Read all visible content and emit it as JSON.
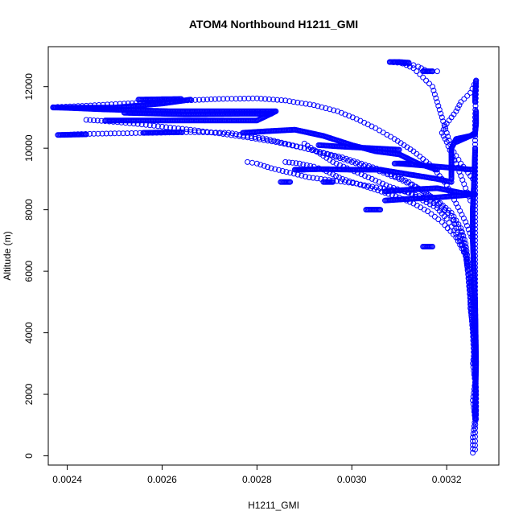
{
  "chart_data": {
    "type": "scatter",
    "title": "ATOM4 Northbound H1211_GMI",
    "xlabel": "H1211_GMI",
    "ylabel": "Altitude (m)",
    "xlim": [
      0.00236,
      0.00331
    ],
    "ylim": [
      -300,
      13300
    ],
    "x_ticks": [
      0.0024,
      0.0026,
      0.0028,
      0.003,
      0.0032
    ],
    "x_tick_labels": [
      "0.0024",
      "0.0026",
      "0.0028",
      "0.0030",
      "0.0032"
    ],
    "y_ticks": [
      0,
      2000,
      4000,
      6000,
      8000,
      10000,
      12000
    ],
    "y_tick_labels": [
      "0",
      "2000",
      "4000",
      "6000",
      "8000",
      "10000",
      "12000"
    ],
    "marker": "open-circle",
    "color": "#0000ff",
    "grid": false,
    "series": [
      {
        "points": [
          [
            0.003255,
            100
          ],
          [
            0.003255,
            600
          ],
          [
            0.00326,
            1200
          ],
          [
            0.003255,
            1800
          ],
          [
            0.00326,
            2400
          ],
          [
            0.003255,
            3000
          ],
          [
            0.00326,
            3600
          ],
          [
            0.003255,
            4200
          ],
          [
            0.00325,
            4800
          ],
          [
            0.00325,
            5400
          ],
          [
            0.003245,
            6000
          ],
          [
            0.00324,
            6500
          ],
          [
            0.00323,
            7000
          ],
          [
            0.00322,
            7400
          ],
          [
            0.00321,
            7800
          ],
          [
            0.00319,
            8100
          ],
          [
            0.00317,
            8400
          ],
          [
            0.00315,
            8600
          ],
          [
            0.00312,
            8900
          ],
          [
            0.00309,
            9100
          ],
          [
            0.00306,
            9300
          ],
          [
            0.00302,
            9500
          ],
          [
            0.00298,
            9700
          ],
          [
            0.00294,
            9850
          ],
          [
            0.0029,
            10000
          ],
          [
            0.00286,
            10150
          ],
          [
            0.00282,
            10300
          ],
          [
            0.00278,
            10400
          ],
          [
            0.00274,
            10500
          ],
          [
            0.00266,
            10520
          ],
          [
            0.00258,
            10500
          ],
          [
            0.0025,
            10480
          ],
          [
            0.00243,
            10460
          ],
          [
            0.0024,
            10440
          ]
        ]
      },
      {
        "points": [
          [
            0.00326,
            200
          ],
          [
            0.00326,
            900
          ],
          [
            0.003262,
            1500
          ],
          [
            0.003262,
            2100
          ],
          [
            0.00326,
            2700
          ],
          [
            0.00326,
            3300
          ],
          [
            0.00326,
            3900
          ],
          [
            0.003258,
            4500
          ],
          [
            0.003255,
            5100
          ],
          [
            0.00325,
            5700
          ],
          [
            0.003245,
            6300
          ],
          [
            0.00324,
            6900
          ],
          [
            0.00323,
            7400
          ],
          [
            0.00321,
            7900
          ],
          [
            0.00318,
            8300
          ],
          [
            0.00314,
            8700
          ],
          [
            0.0031,
            9000
          ],
          [
            0.00305,
            9300
          ],
          [
            0.003,
            9550
          ],
          [
            0.00295,
            9800
          ],
          [
            0.0029,
            10000
          ],
          [
            0.00284,
            10200
          ],
          [
            0.00278,
            10350
          ],
          [
            0.00272,
            10480
          ],
          [
            0.00266,
            10600
          ],
          [
            0.0026,
            10700
          ],
          [
            0.00254,
            10800
          ],
          [
            0.00248,
            10880
          ],
          [
            0.00244,
            10920
          ]
        ]
      },
      {
        "points": [
          [
            0.003255,
            7000
          ],
          [
            0.00324,
            7600
          ],
          [
            0.00322,
            8200
          ],
          [
            0.0032,
            8800
          ],
          [
            0.00317,
            9400
          ],
          [
            0.00313,
            9900
          ],
          [
            0.00309,
            10300
          ],
          [
            0.00305,
            10650
          ],
          [
            0.00301,
            10950
          ],
          [
            0.00297,
            11200
          ],
          [
            0.00292,
            11400
          ],
          [
            0.00286,
            11550
          ],
          [
            0.0028,
            11620
          ],
          [
            0.00272,
            11600
          ],
          [
            0.00262,
            11530
          ],
          [
            0.00252,
            11450
          ],
          [
            0.00244,
            11380
          ],
          [
            0.00238,
            11340
          ]
        ]
      },
      {
        "points": [
          [
            0.00326,
            4000
          ],
          [
            0.00326,
            5000
          ],
          [
            0.00326,
            6000
          ],
          [
            0.00326,
            7000
          ],
          [
            0.00326,
            8000
          ],
          [
            0.00326,
            9000
          ],
          [
            0.00326,
            10000
          ],
          [
            0.00326,
            11000
          ],
          [
            0.003262,
            12000
          ],
          [
            0.003262,
            12200
          ],
          [
            0.00325,
            11800
          ],
          [
            0.00323,
            11500
          ],
          [
            0.00322,
            11200
          ],
          [
            0.00321,
            11000
          ],
          [
            0.0032,
            10800
          ],
          [
            0.00319,
            10500
          ],
          [
            0.0032,
            10200
          ],
          [
            0.00321,
            9800
          ],
          [
            0.00322,
            9500
          ],
          [
            0.00323,
            9100
          ],
          [
            0.00324,
            8700
          ],
          [
            0.00325,
            8300
          ]
        ]
      },
      {
        "points": [
          [
            0.003255,
            9000
          ],
          [
            0.00323,
            9500
          ],
          [
            0.00321,
            10000
          ],
          [
            0.0032,
            10500
          ],
          [
            0.00319,
            11000
          ],
          [
            0.00318,
            11500
          ],
          [
            0.00317,
            12000
          ],
          [
            0.00315,
            12300
          ],
          [
            0.00313,
            12600
          ],
          [
            0.0031,
            12800
          ],
          [
            0.00308,
            12800
          ],
          [
            0.00312,
            12750
          ],
          [
            0.00314,
            12650
          ],
          [
            0.00316,
            12500
          ],
          [
            0.00318,
            12500
          ]
        ]
      },
      {
        "points": [
          [
            0.003262,
            1200
          ],
          [
            0.003262,
            2000
          ],
          [
            0.00326,
            2800
          ],
          [
            0.003258,
            3600
          ],
          [
            0.003255,
            4400
          ],
          [
            0.00325,
            5200
          ],
          [
            0.003245,
            6000
          ],
          [
            0.00324,
            6700
          ],
          [
            0.00323,
            7300
          ],
          [
            0.00321,
            7800
          ],
          [
            0.00318,
            8150
          ],
          [
            0.00315,
            8400
          ],
          [
            0.00311,
            8600
          ],
          [
            0.00306,
            8700
          ],
          [
            0.00301,
            8850
          ],
          [
            0.00296,
            8950
          ],
          [
            0.00291,
            9050
          ],
          [
            0.00287,
            9200
          ],
          [
            0.00283,
            9350
          ],
          [
            0.0028,
            9500
          ],
          [
            0.00278,
            9550
          ]
        ]
      },
      {
        "points": [
          [
            0.003258,
            3000
          ],
          [
            0.003255,
            4000
          ],
          [
            0.00325,
            5000
          ],
          [
            0.003245,
            5900
          ],
          [
            0.00324,
            6600
          ],
          [
            0.00322,
            7200
          ],
          [
            0.0032,
            7700
          ],
          [
            0.00318,
            8050
          ],
          [
            0.00315,
            8300
          ],
          [
            0.00312,
            8550
          ],
          [
            0.00308,
            8750
          ],
          [
            0.00305,
            8950
          ],
          [
            0.00302,
            9150
          ],
          [
            0.00299,
            9350
          ],
          [
            0.00296,
            9550
          ],
          [
            0.00294,
            9750
          ],
          [
            0.00292,
            9950
          ],
          [
            0.0029,
            10150
          ]
        ]
      },
      {
        "points": [
          [
            0.00326,
            2000
          ],
          [
            0.00326,
            3000
          ],
          [
            0.003258,
            4000
          ],
          [
            0.003255,
            5000
          ],
          [
            0.00325,
            5800
          ],
          [
            0.00324,
            6500
          ],
          [
            0.00322,
            7100
          ],
          [
            0.00319,
            7600
          ],
          [
            0.00316,
            7950
          ],
          [
            0.00313,
            8200
          ],
          [
            0.0031,
            8400
          ],
          [
            0.00307,
            8550
          ],
          [
            0.00304,
            8700
          ],
          [
            0.00301,
            8850
          ],
          [
            0.00298,
            9000
          ],
          [
            0.00296,
            9150
          ],
          [
            0.00294,
            9300
          ],
          [
            0.00292,
            9400
          ],
          [
            0.00289,
            9500
          ],
          [
            0.00286,
            9550
          ]
        ]
      }
    ],
    "dense_segments": [
      [
        [
          0.00237,
          11320
        ],
        [
          0.0025,
          11320
        ],
        [
          0.0026,
          11450
        ],
        [
          0.00266,
          11580
        ]
      ],
      [
        [
          0.00237,
          11330
        ],
        [
          0.00248,
          11260
        ],
        [
          0.00262,
          11200
        ],
        [
          0.00276,
          11200
        ],
        [
          0.0028,
          11200
        ],
        [
          0.00284,
          11200
        ],
        [
          0.00282,
          11050
        ],
        [
          0.0028,
          10900
        ],
        [
          0.00262,
          10900
        ],
        [
          0.00248,
          10900
        ]
      ],
      [
        [
          0.00252,
          11150
        ],
        [
          0.00265,
          11100
        ],
        [
          0.00278,
          11120
        ],
        [
          0.00283,
          11120
        ]
      ],
      [
        [
          0.00277,
          10500
        ],
        [
          0.00282,
          10550
        ],
        [
          0.00288,
          10600
        ],
        [
          0.00294,
          10400
        ],
        [
          0.003,
          10100
        ],
        [
          0.00305,
          9900
        ],
        [
          0.0031,
          9800
        ],
        [
          0.00314,
          9500
        ],
        [
          0.00318,
          9300
        ]
      ],
      [
        [
          0.00293,
          10100
        ],
        [
          0.00298,
          10050
        ],
        [
          0.00304,
          10000
        ],
        [
          0.0031,
          9950
        ]
      ],
      [
        [
          0.00288,
          9300
        ],
        [
          0.00294,
          9320
        ],
        [
          0.003,
          9300
        ],
        [
          0.00306,
          9300
        ],
        [
          0.0031,
          9200
        ],
        [
          0.00314,
          9100
        ],
        [
          0.00318,
          9000
        ],
        [
          0.00321,
          8900
        ]
      ],
      [
        [
          0.0031,
          9500
        ],
        [
          0.00314,
          9450
        ],
        [
          0.00318,
          9400
        ],
        [
          0.00322,
          9350
        ],
        [
          0.003255,
          9300
        ]
      ],
      [
        [
          0.00307,
          8600
        ],
        [
          0.00312,
          8650
        ],
        [
          0.00318,
          8700
        ],
        [
          0.00323,
          8550
        ],
        [
          0.00326,
          8500
        ]
      ],
      [
        [
          0.00307,
          8300
        ],
        [
          0.00312,
          8350
        ],
        [
          0.00318,
          8400
        ],
        [
          0.00322,
          8450
        ],
        [
          0.00326,
          8500
        ]
      ],
      [
        [
          0.00322,
          10200
        ],
        [
          0.00325,
          10400
        ],
        [
          0.00326,
          10500
        ],
        [
          0.003262,
          10800
        ],
        [
          0.003262,
          11200
        ]
      ],
      [
        [
          0.00321,
          9000
        ],
        [
          0.00321,
          9500
        ],
        [
          0.00321,
          10000
        ],
        [
          0.00322,
          10300
        ],
        [
          0.00325,
          10400
        ],
        [
          0.00326,
          10450
        ]
      ],
      [
        [
          0.00326,
          1200
        ],
        [
          0.00326,
          1600
        ],
        [
          0.003262,
          3000
        ],
        [
          0.00326,
          5000
        ],
        [
          0.003255,
          7000
        ],
        [
          0.003255,
          8000
        ],
        [
          0.003258,
          9000
        ],
        [
          0.00326,
          10000
        ]
      ],
      [
        [
          0.00326,
          11500
        ],
        [
          0.00326,
          11800
        ],
        [
          0.003262,
          12200
        ]
      ],
      [
        [
          0.00308,
          12800
        ],
        [
          0.0031,
          12800
        ],
        [
          0.00312,
          12780
        ]
      ],
      [
        [
          0.00315,
          12500
        ],
        [
          0.00317,
          12500
        ]
      ],
      [
        [
          0.00285,
          8900
        ],
        [
          0.00287,
          8900
        ]
      ],
      [
        [
          0.00288,
          9300
        ],
        [
          0.0029,
          9300
        ]
      ],
      [
        [
          0.00294,
          8900
        ],
        [
          0.00296,
          8900
        ]
      ],
      [
        [
          0.00303,
          8000
        ],
        [
          0.00306,
          8000
        ]
      ],
      [
        [
          0.00309,
          9500
        ],
        [
          0.00312,
          9500
        ]
      ],
      [
        [
          0.00315,
          6800
        ],
        [
          0.00317,
          6800
        ]
      ],
      [
        [
          0.00238,
          10430
        ],
        [
          0.00244,
          10450
        ]
      ],
      [
        [
          0.00256,
          10500
        ],
        [
          0.00264,
          10520
        ]
      ],
      [
        [
          0.00255,
          11580
        ],
        [
          0.00264,
          11600
        ]
      ]
    ]
  }
}
